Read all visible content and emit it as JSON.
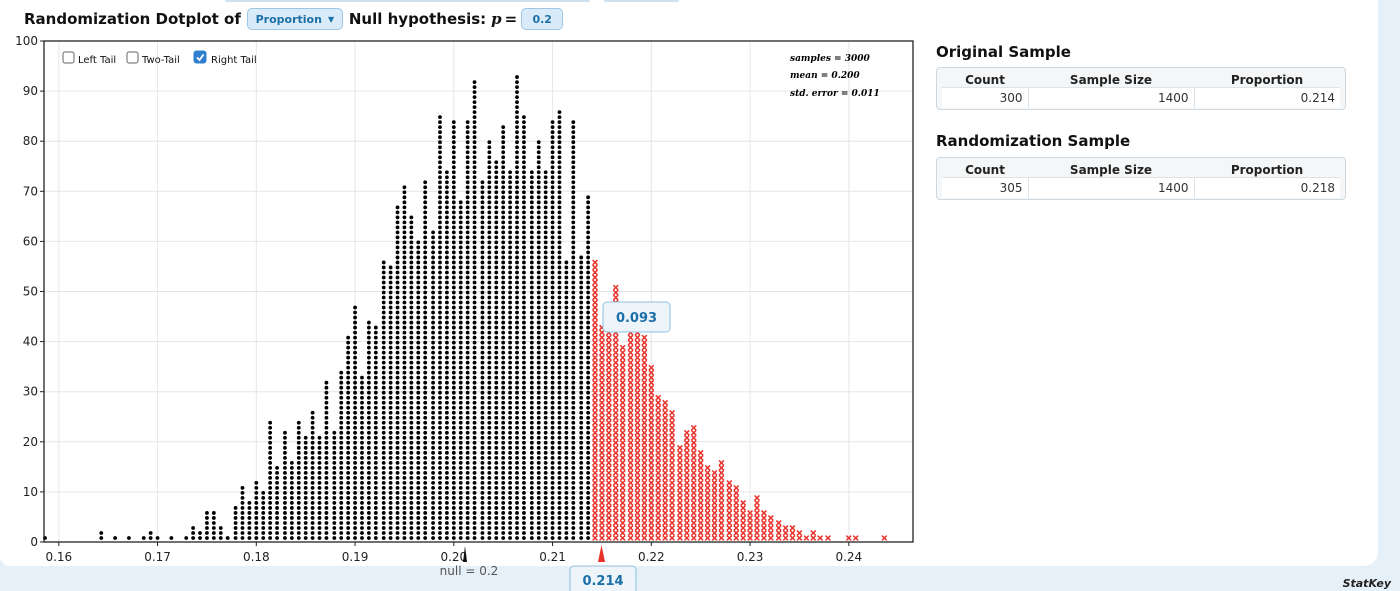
{
  "header": {
    "title": "Randomization Dotplot of",
    "statistic_selected": "Proportion",
    "null_label": "Null hypothesis:",
    "param_symbol": "p",
    "equals": "=",
    "null_value": "0.2"
  },
  "tails": [
    {
      "label": "Left Tail",
      "checked": false
    },
    {
      "label": "Two-Tail",
      "checked": false
    },
    {
      "label": "Right Tail",
      "checked": true
    }
  ],
  "stats_box": {
    "samples": "samples = 3000",
    "mean": "mean = 0.200",
    "std_error": "std. error = 0.011"
  },
  "tail_proportion": "0.093",
  "observed_value": "0.214",
  "null_marker_label": "null = 0.2",
  "original_sample": {
    "title": "Original Sample",
    "headers": [
      "Count",
      "Sample Size",
      "Proportion"
    ],
    "row": [
      "300",
      "1400",
      "0.214"
    ]
  },
  "randomization_sample": {
    "title": "Randomization Sample",
    "headers": [
      "Count",
      "Sample Size",
      "Proportion"
    ],
    "row": [
      "305",
      "1400",
      "0.218"
    ]
  },
  "brand": "StatKey",
  "colors": {
    "dot": "#000000",
    "tail": "#e8312a",
    "accent": "#1d6fa8",
    "pill_bg": "#d9ebf8"
  },
  "chart_data": {
    "type": "scatter",
    "subtype": "dotplot",
    "x_ticks": [
      "0.16",
      "0.17",
      "0.18",
      "0.19",
      "0.20",
      "0.21",
      "0.22",
      "0.23",
      "0.24"
    ],
    "y_ticks": [
      "0",
      "10",
      "20",
      "30",
      "40",
      "50",
      "60",
      "70",
      "80",
      "90",
      "100"
    ],
    "xlim": [
      0.1585,
      0.2465
    ],
    "ylim": [
      0,
      100
    ],
    "grid": true,
    "cutoff": 0.214,
    "bins": [
      [
        0.1586,
        1
      ],
      [
        0.1643,
        2
      ],
      [
        0.1657,
        1
      ],
      [
        0.1671,
        1
      ],
      [
        0.1686,
        1
      ],
      [
        0.1693,
        2
      ],
      [
        0.17,
        1
      ],
      [
        0.1714,
        1
      ],
      [
        0.1729,
        1
      ],
      [
        0.1736,
        3
      ],
      [
        0.1743,
        2
      ],
      [
        0.175,
        6
      ],
      [
        0.1757,
        6
      ],
      [
        0.1764,
        3
      ],
      [
        0.1771,
        1
      ],
      [
        0.1779,
        7
      ],
      [
        0.1786,
        11
      ],
      [
        0.1793,
        8
      ],
      [
        0.18,
        12
      ],
      [
        0.1807,
        10
      ],
      [
        0.1814,
        24
      ],
      [
        0.1821,
        15
      ],
      [
        0.1829,
        22
      ],
      [
        0.1836,
        16
      ],
      [
        0.1843,
        24
      ],
      [
        0.185,
        21
      ],
      [
        0.1857,
        26
      ],
      [
        0.1864,
        21
      ],
      [
        0.1871,
        32
      ],
      [
        0.1879,
        22
      ],
      [
        0.1886,
        34
      ],
      [
        0.1893,
        41
      ],
      [
        0.19,
        47
      ],
      [
        0.1907,
        33
      ],
      [
        0.1914,
        44
      ],
      [
        0.1921,
        43
      ],
      [
        0.1929,
        56
      ],
      [
        0.1936,
        55
      ],
      [
        0.1943,
        67
      ],
      [
        0.195,
        71
      ],
      [
        0.1957,
        65
      ],
      [
        0.1964,
        60
      ],
      [
        0.1971,
        72
      ],
      [
        0.1979,
        62
      ],
      [
        0.1986,
        85
      ],
      [
        0.1993,
        74
      ],
      [
        0.2,
        84
      ],
      [
        0.2007,
        68
      ],
      [
        0.2014,
        84
      ],
      [
        0.2021,
        92
      ],
      [
        0.2029,
        72
      ],
      [
        0.2036,
        80
      ],
      [
        0.2043,
        76
      ],
      [
        0.205,
        83
      ],
      [
        0.2057,
        74
      ],
      [
        0.2064,
        93
      ],
      [
        0.2071,
        85
      ],
      [
        0.2079,
        74
      ],
      [
        0.2086,
        80
      ],
      [
        0.2093,
        74
      ],
      [
        0.21,
        84
      ],
      [
        0.2107,
        86
      ],
      [
        0.2114,
        56
      ],
      [
        0.2121,
        84
      ],
      [
        0.2129,
        57
      ],
      [
        0.2136,
        69
      ],
      [
        0.2143,
        56
      ],
      [
        0.215,
        43
      ],
      [
        0.2157,
        46
      ],
      [
        0.2164,
        51
      ],
      [
        0.2171,
        39
      ],
      [
        0.2179,
        43
      ],
      [
        0.2186,
        42
      ],
      [
        0.2193,
        41
      ],
      [
        0.22,
        35
      ],
      [
        0.2207,
        29
      ],
      [
        0.2214,
        28
      ],
      [
        0.2221,
        26
      ],
      [
        0.2229,
        19
      ],
      [
        0.2236,
        22
      ],
      [
        0.2243,
        23
      ],
      [
        0.225,
        18
      ],
      [
        0.2257,
        15
      ],
      [
        0.2264,
        14
      ],
      [
        0.2271,
        16
      ],
      [
        0.2279,
        12
      ],
      [
        0.2286,
        11
      ],
      [
        0.2293,
        8
      ],
      [
        0.23,
        6
      ],
      [
        0.2307,
        9
      ],
      [
        0.2314,
        6
      ],
      [
        0.2321,
        5
      ],
      [
        0.2329,
        4
      ],
      [
        0.2336,
        3
      ],
      [
        0.2343,
        3
      ],
      [
        0.235,
        2
      ],
      [
        0.2357,
        1
      ],
      [
        0.2364,
        2
      ],
      [
        0.2371,
        1
      ],
      [
        0.2379,
        1
      ],
      [
        0.24,
        1
      ],
      [
        0.2407,
        1
      ],
      [
        0.2436,
        1
      ]
    ]
  }
}
